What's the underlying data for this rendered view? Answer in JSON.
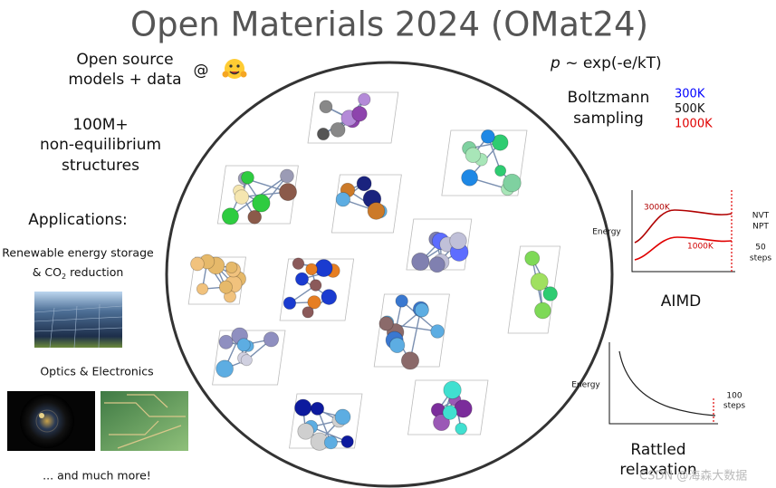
{
  "header": {
    "title": "Open Materials 2024 (OMat24)"
  },
  "left": {
    "open_source": [
      "Open source",
      "models + data"
    ],
    "at": "@",
    "count": [
      "100M+",
      "non-equilibrium",
      "structures"
    ],
    "applications": {
      "title": "Applications:",
      "energy": {
        "line1": "Renewable energy storage",
        "prefix": "& CO",
        "sub": "2",
        "suffix": " reduction"
      },
      "optics": "Optics & Electronics",
      "more": "... and much more!"
    }
  },
  "right": {
    "formula": {
      "var": "p",
      "rest": " ~ exp(-e/kT)"
    },
    "boltzmann": [
      "Boltzmann",
      "sampling"
    ],
    "temperatures": [
      {
        "label": "300K",
        "color": "#0000ff"
      },
      {
        "label": "500K",
        "color": "#111111"
      },
      {
        "label": "1000K",
        "color": "#e00000"
      }
    ],
    "aimd": {
      "y_label": "Energy",
      "hot": "3000K",
      "cold": "1000K",
      "ensembles": [
        "NVT",
        "NPT"
      ],
      "steps": [
        "50",
        "steps"
      ],
      "title": "AIMD"
    },
    "rattled": {
      "y_label": "Energy",
      "steps": [
        "100",
        "steps"
      ],
      "title": [
        "Rattled",
        "relaxation"
      ]
    }
  },
  "watermark": "CSDN @海森大数据"
}
